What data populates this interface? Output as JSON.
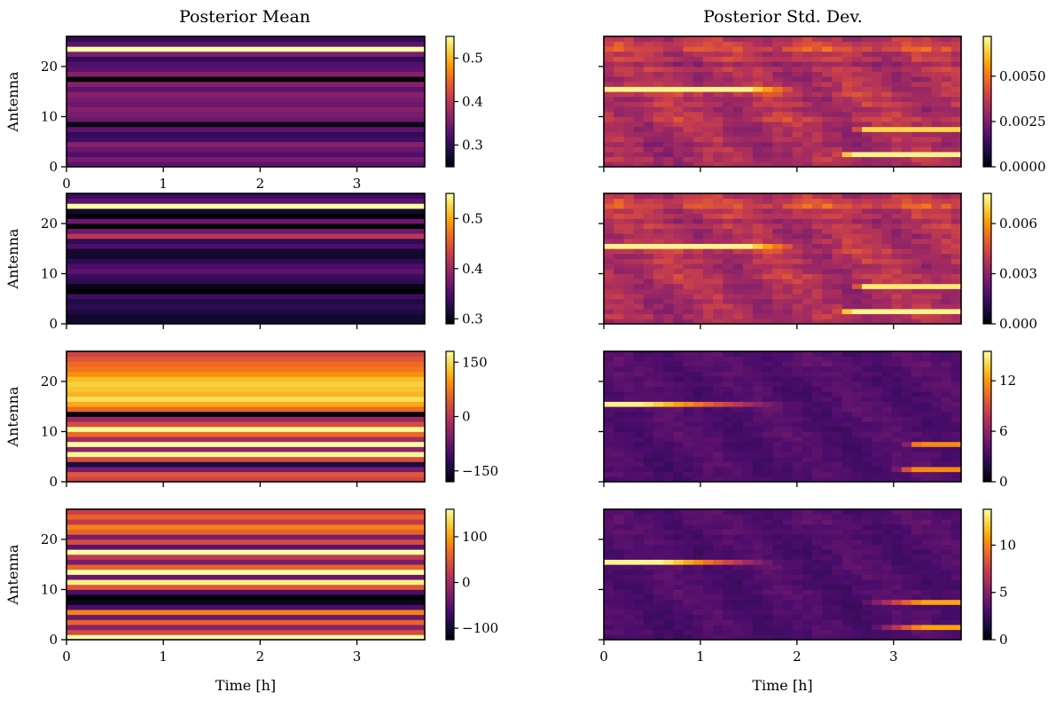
{
  "figure": {
    "column_titles": [
      "Posterior Mean",
      "Posterior Std. Dev."
    ],
    "ylabel": "Antenna",
    "xlabel": "Time [h]"
  },
  "colormap": {
    "name": "inferno",
    "stops": [
      "#000004",
      "#1b0c41",
      "#4a0c6b",
      "#781c6d",
      "#a52c60",
      "#cf4446",
      "#ed6925",
      "#fb9b06",
      "#f7d13d",
      "#fcffa4"
    ]
  },
  "chart_data": [
    {
      "type": "heatmap",
      "column": "Posterior Mean",
      "row": 1,
      "title": "Posterior Mean",
      "xlabel": "",
      "ylabel": "Antenna",
      "xlim": [
        0,
        3.7
      ],
      "ylim": [
        0,
        26
      ],
      "xticks": [
        0,
        1,
        2,
        3
      ],
      "xticklabels": [
        "0",
        "1",
        "2",
        "3"
      ],
      "yticks": [
        0,
        10,
        20
      ],
      "yticklabels": [
        "0",
        "10",
        "20"
      ],
      "vmin": 0.25,
      "vmax": 0.55,
      "colorbar_ticks": [
        0.3,
        0.4,
        0.5
      ],
      "colorbar_ticklabels": [
        "0.3",
        "0.4",
        "0.5"
      ],
      "antenna_values": [
        0.33,
        0.35,
        0.32,
        0.34,
        0.36,
        0.31,
        0.3,
        0.33,
        0.26,
        0.34,
        0.35,
        0.36,
        0.34,
        0.35,
        0.36,
        0.33,
        0.36,
        0.25,
        0.36,
        0.33,
        0.32,
        0.3,
        0.35,
        0.55,
        0.33,
        0.3
      ]
    },
    {
      "type": "heatmap",
      "column": "Posterior Std. Dev.",
      "row": 1,
      "title": "Posterior Std. Dev.",
      "xlabel": "",
      "ylabel": "",
      "xlim": [
        0,
        3.7
      ],
      "ylim": [
        0,
        26
      ],
      "xticks": [
        0,
        1,
        2,
        3
      ],
      "xticklabels": [
        "",
        "",
        "",
        ""
      ],
      "yticks": [
        0,
        10,
        20
      ],
      "yticklabels": [
        "",
        "",
        ""
      ],
      "vmin": 0.0,
      "vmax": 0.0072,
      "colorbar_ticks": [
        0.0,
        0.0025,
        0.005
      ],
      "colorbar_ticklabels": [
        "0.0000",
        "0.0025",
        "0.0050"
      ],
      "base_value": 0.0036,
      "antenna_values": [
        0.0034,
        0.0036,
        0.0033,
        0.0035,
        0.0032,
        0.0036,
        0.0034,
        0.0035,
        0.0036,
        0.004,
        0.0037,
        0.0034,
        0.0038,
        0.0035,
        0.004,
        0.0036,
        0.0037,
        0.0034,
        0.0035,
        0.0038,
        0.0032,
        0.0039,
        0.0037,
        0.0045,
        0.0041,
        0.0037
      ],
      "highlights": [
        {
          "antenna": 15,
          "t_start": 0.0,
          "t_end": 1.5,
          "value": 0.007,
          "fade_to": 2.0
        },
        {
          "antenna": 7,
          "t_start": 2.7,
          "t_end": 3.7,
          "value": 0.0065,
          "fade_to": 2.6
        },
        {
          "antenna": 2,
          "t_start": 2.55,
          "t_end": 3.7,
          "value": 0.007,
          "fade_to": 2.4
        }
      ]
    },
    {
      "type": "heatmap",
      "column": "Posterior Mean",
      "row": 2,
      "xlim": [
        0,
        3.7
      ],
      "ylim": [
        0,
        26
      ],
      "xticks": [
        0,
        1,
        2,
        3
      ],
      "xticklabels": [
        "",
        "",
        "",
        ""
      ],
      "yticks": [
        0,
        10,
        20
      ],
      "yticklabels": [
        "0",
        "10",
        "20"
      ],
      "vmin": 0.29,
      "vmax": 0.55,
      "colorbar_ticks": [
        0.3,
        0.4,
        0.5
      ],
      "colorbar_ticklabels": [
        "0.3",
        "0.4",
        "0.5"
      ],
      "antenna_values": [
        0.31,
        0.31,
        0.32,
        0.33,
        0.32,
        0.34,
        0.29,
        0.3,
        0.33,
        0.34,
        0.36,
        0.35,
        0.33,
        0.31,
        0.31,
        0.35,
        0.33,
        0.42,
        0.37,
        0.29,
        0.37,
        0.29,
        0.31,
        0.55,
        0.36,
        0.34
      ]
    },
    {
      "type": "heatmap",
      "column": "Posterior Std. Dev.",
      "row": 2,
      "xlim": [
        0,
        3.7
      ],
      "ylim": [
        0,
        26
      ],
      "xticks": [
        0,
        1,
        2,
        3
      ],
      "xticklabels": [
        "",
        "",
        "",
        ""
      ],
      "yticks": [
        0,
        10,
        20
      ],
      "yticklabels": [
        "",
        "",
        ""
      ],
      "vmin": 0.0,
      "vmax": 0.0078,
      "colorbar_ticks": [
        0.0,
        0.003,
        0.006
      ],
      "colorbar_ticklabels": [
        "0.000",
        "0.003",
        "0.006"
      ],
      "base_value": 0.004,
      "antenna_values": [
        0.0037,
        0.0039,
        0.0036,
        0.0038,
        0.0036,
        0.0039,
        0.0037,
        0.0038,
        0.004,
        0.0042,
        0.0039,
        0.0037,
        0.0041,
        0.0038,
        0.0043,
        0.0039,
        0.004,
        0.0037,
        0.0038,
        0.0041,
        0.0036,
        0.0042,
        0.004,
        0.0049,
        0.0045,
        0.004
      ],
      "highlights": [
        {
          "antenna": 15,
          "t_start": 0.0,
          "t_end": 1.5,
          "value": 0.0076,
          "fade_to": 2.0
        },
        {
          "antenna": 7,
          "t_start": 2.7,
          "t_end": 3.7,
          "value": 0.0074,
          "fade_to": 2.6
        },
        {
          "antenna": 2,
          "t_start": 2.55,
          "t_end": 3.7,
          "value": 0.0076,
          "fade_to": 2.4
        }
      ]
    },
    {
      "type": "heatmap",
      "column": "Posterior Mean",
      "row": 3,
      "xlim": [
        0,
        3.7
      ],
      "ylim": [
        0,
        26
      ],
      "xticks": [
        0,
        1,
        2,
        3
      ],
      "xticklabels": [
        "",
        "",
        "",
        ""
      ],
      "yticks": [
        0,
        10,
        20
      ],
      "yticklabels": [
        "0",
        "10",
        "20"
      ],
      "vmin": -180,
      "vmax": 180,
      "colorbar_ticks": [
        -150,
        0,
        150
      ],
      "colorbar_ticklabels": [
        "−150",
        "0",
        "150"
      ],
      "antenna_values": [
        20,
        40,
        -60,
        -140,
        30,
        175,
        -40,
        180,
        -20,
        60,
        175,
        30,
        -30,
        -175,
        60,
        110,
        150,
        120,
        130,
        140,
        125,
        90,
        70,
        60,
        40,
        20
      ]
    },
    {
      "type": "heatmap",
      "column": "Posterior Std. Dev.",
      "row": 3,
      "xlim": [
        0,
        3.7
      ],
      "ylim": [
        0,
        26
      ],
      "xticks": [
        0,
        1,
        2,
        3
      ],
      "xticklabels": [
        "",
        "",
        "",
        ""
      ],
      "yticks": [
        0,
        10,
        20
      ],
      "yticklabels": [
        "",
        "",
        ""
      ],
      "vmin": 0,
      "vmax": 15.5,
      "colorbar_ticks": [
        0,
        6,
        12
      ],
      "colorbar_ticklabels": [
        "0",
        "6",
        "12"
      ],
      "base_value": 3.9,
      "antenna_values": [
        3.8,
        3.9,
        3.7,
        3.9,
        3.8,
        4.0,
        3.8,
        3.9,
        4.0,
        4.1,
        3.9,
        3.8,
        4.0,
        3.9,
        4.1,
        4.0,
        3.9,
        3.8,
        3.9,
        4.0,
        3.8,
        4.1,
        4.0,
        4.2,
        4.1,
        4.0
      ],
      "highlights": [
        {
          "antenna": 15,
          "t_start": 0.0,
          "t_end": 0.4,
          "value": 15.0,
          "fade_to": 1.9
        },
        {
          "antenna": 7,
          "t_start": 3.25,
          "t_end": 3.7,
          "value": 11.5,
          "fade_to": 3.1
        },
        {
          "antenna": 2,
          "t_start": 3.2,
          "t_end": 3.7,
          "value": 11.5,
          "fade_to": 3.0
        }
      ]
    },
    {
      "type": "heatmap",
      "column": "Posterior Mean",
      "row": 4,
      "xlim": [
        0,
        3.7
      ],
      "ylim": [
        0,
        26
      ],
      "xticks": [
        0,
        1,
        2,
        3
      ],
      "xticklabels": [
        "0",
        "1",
        "2",
        "3"
      ],
      "yticks": [
        0,
        10,
        20
      ],
      "yticklabels": [
        "0",
        "10",
        "20"
      ],
      "xlabel": "Time [h]",
      "vmin": -125,
      "vmax": 160,
      "colorbar_ticks": [
        -100,
        0,
        100
      ],
      "colorbar_ticklabels": [
        "−100",
        "0",
        "100"
      ],
      "antenna_values": [
        160,
        40,
        -20,
        60,
        -40,
        80,
        -60,
        -110,
        -125,
        -60,
        50,
        150,
        -40,
        160,
        60,
        -30,
        20,
        160,
        -50,
        40,
        -30,
        60,
        80,
        20,
        60,
        30
      ]
    },
    {
      "type": "heatmap",
      "column": "Posterior Std. Dev.",
      "row": 4,
      "xlim": [
        0,
        3.7
      ],
      "ylim": [
        0,
        26
      ],
      "xticks": [
        0,
        1,
        2,
        3
      ],
      "xticklabels": [
        "0",
        "1",
        "2",
        "3"
      ],
      "yticks": [
        0,
        10,
        20
      ],
      "yticklabels": [
        "",
        "",
        ""
      ],
      "xlabel": "Time [h]",
      "vmin": 0,
      "vmax": 13.8,
      "colorbar_ticks": [
        0,
        5,
        10
      ],
      "colorbar_ticklabels": [
        "0",
        "5",
        "10"
      ],
      "base_value": 3.4,
      "antenna_values": [
        3.3,
        3.4,
        3.3,
        3.4,
        3.3,
        3.5,
        3.3,
        3.4,
        3.5,
        3.6,
        3.4,
        3.3,
        3.5,
        3.4,
        3.6,
        3.5,
        3.4,
        3.3,
        3.4,
        3.5,
        3.3,
        3.6,
        3.5,
        3.7,
        3.6,
        3.5
      ],
      "highlights": [
        {
          "antenna": 15,
          "t_start": 0.0,
          "t_end": 0.6,
          "value": 13.5,
          "fade_to": 1.8
        },
        {
          "antenna": 7,
          "t_start": 3.3,
          "t_end": 3.7,
          "value": 11.0,
          "fade_to": 2.7
        },
        {
          "antenna": 2,
          "t_start": 3.3,
          "t_end": 3.7,
          "value": 11.0,
          "fade_to": 2.8
        }
      ]
    }
  ]
}
